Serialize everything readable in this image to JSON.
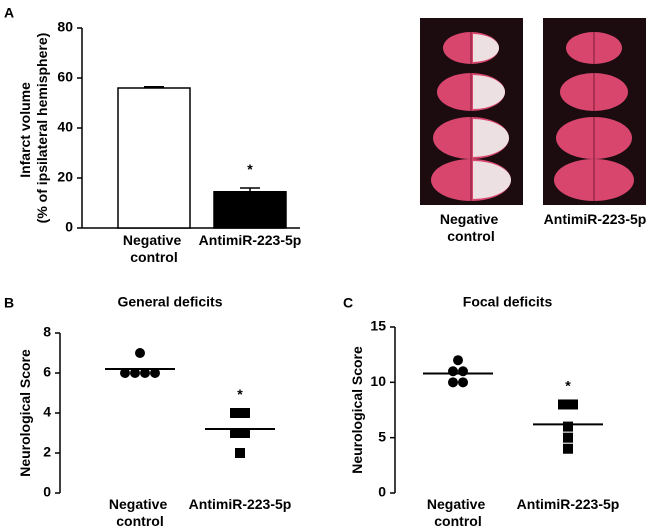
{
  "chart_data": [
    {
      "type": "bar",
      "panel_label": "A",
      "ylabel": "Infarct volume (% of ipsilateral hemisphere)",
      "categories": [
        "Negative control",
        "AntimiR-223-5p"
      ],
      "values": [
        56,
        14.5
      ],
      "errors": [
        0.5,
        1.5
      ],
      "colors": [
        "#ffffff",
        "#000000"
      ],
      "ylim": [
        0,
        80
      ],
      "yticks": [
        0,
        20,
        40,
        60,
        80
      ],
      "xaxis": true,
      "annotations": [
        {
          "text": "*",
          "category": 1
        }
      ]
    },
    {
      "type": "dot",
      "panel_label": "B",
      "title": "General deficits",
      "ylabel": "Neurological Score",
      "categories": [
        "Negative control",
        "AntimiR-223-5p"
      ],
      "values": [
        [
          7,
          6,
          6,
          6,
          6
        ],
        [
          4,
          4,
          3,
          3,
          2
        ]
      ],
      "means": [
        6.2,
        3.2
      ],
      "markers": [
        "circle",
        "square"
      ],
      "color": "#000000",
      "ylim": [
        0,
        8
      ],
      "yticks": [
        0,
        2,
        4,
        6,
        8
      ],
      "xaxis": false,
      "annotations": [
        {
          "text": "*",
          "category": 1
        }
      ]
    },
    {
      "type": "dot",
      "panel_label": "C",
      "title": "Focal deficits",
      "ylabel": "Neurological Score",
      "categories": [
        "Negative control",
        "AntimiR-223-5p"
      ],
      "values": [
        [
          12,
          11,
          11,
          10,
          10
        ],
        [
          8,
          8,
          6,
          5,
          4
        ]
      ],
      "means": [
        10.8,
        6.2
      ],
      "markers": [
        "circle",
        "square"
      ],
      "color": "#000000",
      "ylim": [
        0,
        15
      ],
      "yticks": [
        0,
        5,
        10,
        15
      ],
      "xaxis": false,
      "annotations": [
        {
          "text": "*",
          "category": 1
        }
      ]
    }
  ],
  "images": {
    "labels": [
      "Negative control",
      "AntimiR-223-5p"
    ]
  }
}
